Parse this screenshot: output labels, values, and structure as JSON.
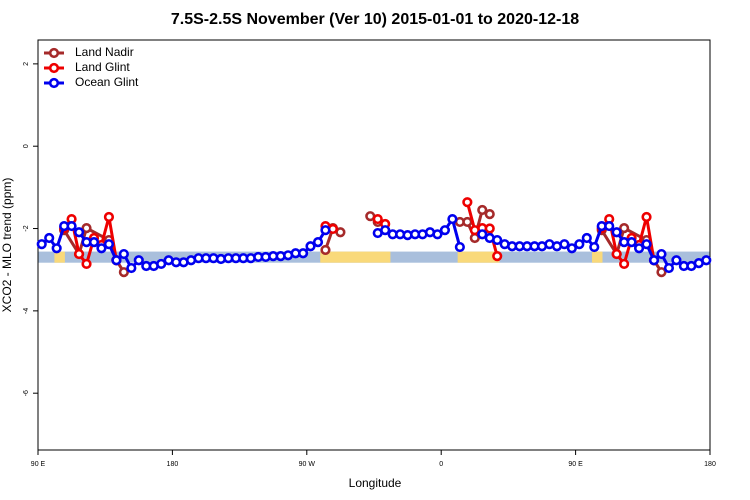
{
  "chart_data": {
    "type": "line",
    "title": "7.5S-2.5S November (Ver 10)   2015-01-01 to 2020-12-18",
    "x_label": "Longitude",
    "y_label": "XCO2 - MLO trend (ppm)",
    "xlim": [
      90,
      540
    ],
    "ylim": [
      -7.38,
      2.58
    ],
    "xticks": [
      {
        "value": 90,
        "label": "90 E"
      },
      180,
      {
        "value": 270,
        "label": "90 W"
      },
      {
        "value": 360,
        "label": "0"
      },
      {
        "value": 450,
        "label": "90 E"
      },
      {
        "value": 540,
        "label": "180"
      }
    ],
    "yticks": [
      2,
      0,
      -2,
      -4,
      -6
    ],
    "legend": "top-left",
    "band": {
      "ylim": [
        -2.83,
        -2.56
      ],
      "color": "#a9bfdc",
      "land_color": "#f9d97a",
      "land_segments": [
        [
          101,
          108
        ],
        [
          279,
          326
        ],
        [
          371,
          399
        ],
        [
          461,
          468
        ]
      ]
    },
    "series": [
      {
        "name": "Land Nadir",
        "color": "#a52a2a",
        "x": [
          107.5,
          117.5,
          122.5,
          137.5,
          142.5,
          147.5,
          200,
          282.5,
          287.5,
          292.5,
          300,
          312.5,
          317.5,
          340,
          372.5,
          377.5,
          382.5,
          387.5,
          392.5,
          420,
          467.5,
          477.5,
          482.5,
          497.5,
          502.5,
          507.5
        ],
        "values": [
          -2.04,
          -2.62,
          -1.99,
          -2.28,
          -2.77,
          -3.06,
          null,
          -2.52,
          -1.99,
          -2.09,
          null,
          -1.7,
          -1.84,
          null,
          -1.84,
          -1.84,
          -2.23,
          -1.55,
          -1.65,
          null,
          -2.04,
          -2.62,
          -1.99,
          -2.28,
          -2.77,
          -3.06
        ]
      },
      {
        "name": "Land Glint",
        "color": "#ee0000",
        "x": [
          107.5,
          112.5,
          117.5,
          122.5,
          127.5,
          132.5,
          137.5,
          142.5,
          150,
          282.5,
          287.5,
          300,
          317.5,
          322.5,
          345,
          377.5,
          382.5,
          387.5,
          392.5,
          397.5,
          420,
          467.5,
          472.5,
          477.5,
          482.5,
          487.5,
          492.5,
          497.5,
          502.5
        ],
        "values": [
          -1.99,
          -1.77,
          -2.62,
          -2.86,
          -2.23,
          -2.4,
          -1.72,
          -2.77,
          null,
          -1.94,
          -2.01,
          null,
          -1.77,
          -1.89,
          null,
          -1.36,
          -2.04,
          -1.99,
          -2.0,
          -2.67,
          null,
          -1.99,
          -1.77,
          -2.62,
          -2.86,
          -2.23,
          -2.4,
          -1.72,
          -2.77
        ]
      },
      {
        "name": "Ocean Glint",
        "color": "#0000ee",
        "x": [
          92.5,
          97.5,
          102.5,
          107.5,
          112.5,
          117.5,
          122.5,
          127.5,
          132.5,
          137.5,
          142.5,
          147.5,
          152.5,
          157.5,
          162.5,
          167.5,
          172.5,
          177.5,
          182.5,
          187.5,
          192.5,
          197.5,
          202.5,
          207.5,
          212.5,
          217.5,
          222.5,
          227.5,
          232.5,
          237.5,
          242.5,
          247.5,
          252.5,
          257.5,
          262.5,
          267.5,
          272.5,
          277.5,
          282.5,
          300,
          317.5,
          322.5,
          327.5,
          332.5,
          337.5,
          342.5,
          347.5,
          352.5,
          357.5,
          362.5,
          367.5,
          372.5,
          380,
          387.5,
          392.5,
          397.5,
          402.5,
          407.5,
          412.5,
          417.5,
          422.5,
          427.5,
          432.5,
          437.5,
          442.5,
          447.5,
          452.5,
          457.5,
          462.5,
          467.5,
          472.5,
          477.5,
          482.5,
          487.5,
          492.5,
          497.5,
          502.5,
          507.5,
          512.5,
          517.5,
          522.5,
          527.5,
          532.5,
          537.5
        ],
        "values": [
          -2.38,
          -2.23,
          -2.48,
          -1.94,
          -1.94,
          -2.09,
          -2.33,
          -2.33,
          -2.48,
          -2.38,
          -2.77,
          -2.62,
          -2.96,
          -2.77,
          -2.91,
          -2.91,
          -2.86,
          -2.77,
          -2.82,
          -2.82,
          -2.77,
          -2.72,
          -2.72,
          -2.72,
          -2.74,
          -2.72,
          -2.72,
          -2.72,
          -2.72,
          -2.69,
          -2.69,
          -2.67,
          -2.67,
          -2.65,
          -2.6,
          -2.6,
          -2.43,
          -2.33,
          -2.04,
          null,
          -2.11,
          -2.04,
          -2.14,
          -2.14,
          -2.16,
          -2.14,
          -2.14,
          -2.09,
          -2.14,
          -2.04,
          -1.77,
          -2.45,
          null,
          -2.14,
          -2.23,
          -2.28,
          -2.38,
          -2.43,
          -2.43,
          -2.43,
          -2.43,
          -2.43,
          -2.38,
          -2.43,
          -2.38,
          -2.48,
          -2.38,
          -2.23,
          -2.45,
          -1.94,
          -1.94,
          -2.09,
          -2.33,
          -2.33,
          -2.48,
          -2.38,
          -2.77,
          -2.62,
          -2.96,
          -2.77,
          -2.91,
          -2.91,
          -2.84,
          -2.77
        ]
      }
    ]
  }
}
